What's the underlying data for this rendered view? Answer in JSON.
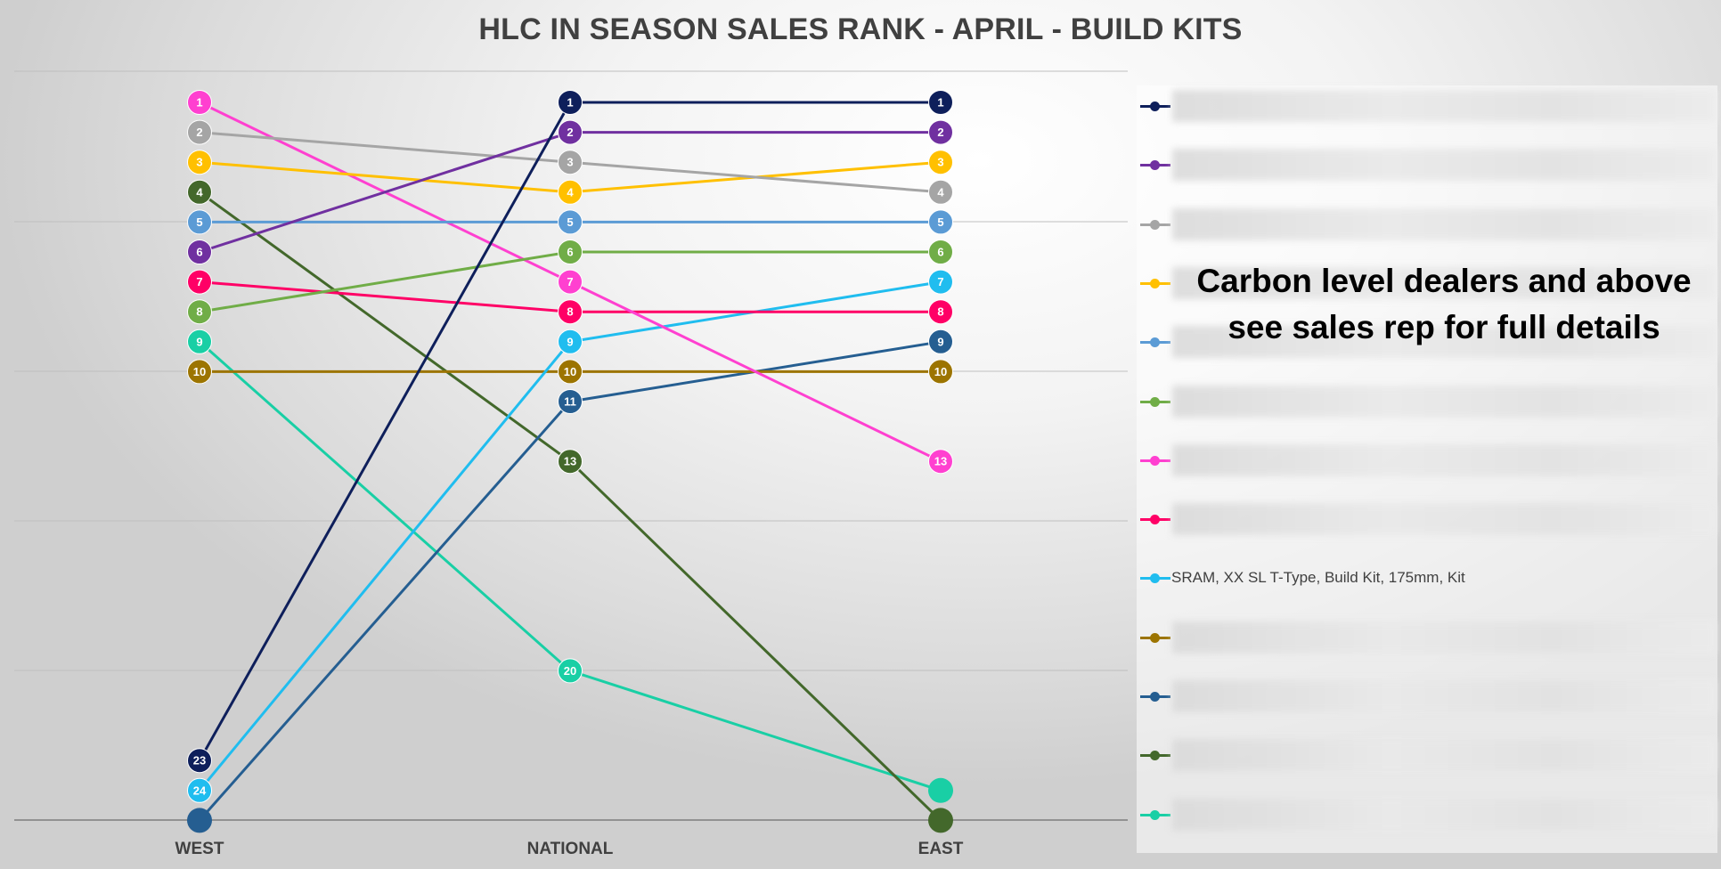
{
  "chart_data": {
    "type": "line",
    "title": "HLC IN SEASON SALES RANK - APRIL - BUILD KITS",
    "categories": [
      "WEST",
      "NATIONAL",
      "EAST"
    ],
    "y_axis": {
      "reversed": true,
      "min": 1,
      "max": 25,
      "gridlines": true
    },
    "legend_position": "right",
    "series": [
      {
        "name": "",
        "color": "#0E1F5B",
        "values": [
          23,
          1,
          1
        ]
      },
      {
        "name": "",
        "color": "#7030A0",
        "values": [
          6,
          2,
          2
        ]
      },
      {
        "name": "",
        "color": "#A5A5A5",
        "values": [
          2,
          3,
          4
        ]
      },
      {
        "name": "",
        "color": "#FFC000",
        "values": [
          3,
          4,
          3
        ]
      },
      {
        "name": "",
        "color": "#5B9BD5",
        "values": [
          5,
          5,
          5
        ]
      },
      {
        "name": "",
        "color": "#70AD47",
        "values": [
          8,
          6,
          6
        ]
      },
      {
        "name": "",
        "color": "#FF40D0",
        "values": [
          1,
          7,
          13
        ]
      },
      {
        "name": "",
        "color": "#FF0066",
        "values": [
          7,
          8,
          8
        ]
      },
      {
        "name": "SRAM, XX SL T-Type, Build Kit, 175mm, Kit",
        "color": "#20BDEF",
        "values": [
          24,
          9,
          7
        ]
      },
      {
        "name": "",
        "color": "#9C7400",
        "values": [
          10,
          10,
          10
        ]
      },
      {
        "name": "",
        "color": "#255E91",
        "values": [
          25,
          11,
          9
        ]
      },
      {
        "name": "",
        "color": "#43682B",
        "values": [
          4,
          13,
          25
        ]
      },
      {
        "name": "",
        "color": "#19CFA5",
        "values": [
          9,
          20,
          24
        ]
      }
    ],
    "unlabeled_markers": [
      {
        "series_index": 10,
        "point_index": 0
      },
      {
        "series_index": 11,
        "point_index": 2
      },
      {
        "series_index": 12,
        "point_index": 2
      }
    ]
  },
  "overlay_note": {
    "line1": "Carbon level dealers and above",
    "line2": "see sales rep for full details"
  }
}
